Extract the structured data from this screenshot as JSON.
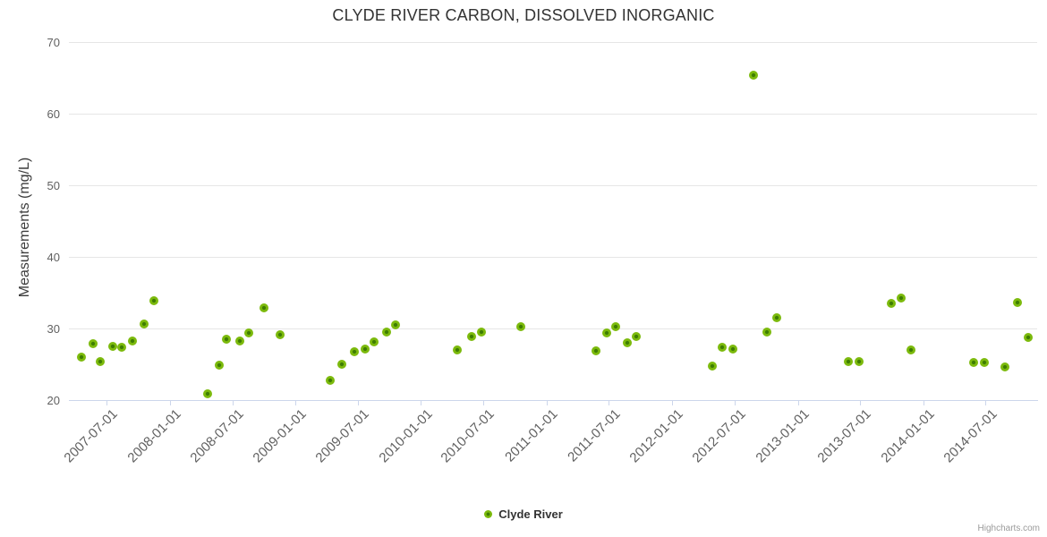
{
  "credits": "Highcharts.com",
  "colors": {
    "point_outer": "#7cba0d",
    "point_inner": "#3e7d02",
    "grid": "#e6e6e6",
    "axis": "#ccd6eb",
    "title_text": "#333333",
    "tick_text": "#606060",
    "credits_text": "#9a9a9a"
  },
  "chart_data": {
    "type": "scatter",
    "title": "CLYDE RIVER CARBON, DISSOLVED INORGANIC",
    "xlabel": "",
    "ylabel": "Measurements (mg/L)",
    "ylim": [
      20,
      70
    ],
    "yticks": [
      20,
      30,
      40,
      50,
      60,
      70
    ],
    "xticks": [
      "2007-07-01",
      "2008-01-01",
      "2008-07-01",
      "2009-01-01",
      "2009-07-01",
      "2010-01-01",
      "2010-07-01",
      "2011-01-01",
      "2011-07-01",
      "2012-01-01",
      "2012-07-01",
      "2013-01-01",
      "2013-07-01",
      "2014-01-01",
      "2014-07-01"
    ],
    "grid": "horizontal",
    "legend_position": "bottom-center",
    "series": [
      {
        "name": "Clyde River",
        "color": "#7cba0d",
        "points": [
          [
            "2007-04-20",
            26.1
          ],
          [
            "2007-05-24",
            28.0
          ],
          [
            "2007-06-14",
            25.4
          ],
          [
            "2007-07-19",
            27.6
          ],
          [
            "2007-08-15",
            27.4
          ],
          [
            "2007-09-15",
            28.3
          ],
          [
            "2007-10-18",
            30.7
          ],
          [
            "2007-11-15",
            34.0
          ],
          [
            "2008-04-20",
            20.9
          ],
          [
            "2008-05-24",
            25.0
          ],
          [
            "2008-06-15",
            28.6
          ],
          [
            "2008-07-22",
            28.3
          ],
          [
            "2008-08-18",
            29.5
          ],
          [
            "2008-10-01",
            32.9
          ],
          [
            "2008-11-18",
            29.2
          ],
          [
            "2009-04-13",
            22.8
          ],
          [
            "2009-05-16",
            25.1
          ],
          [
            "2009-06-22",
            26.8
          ],
          [
            "2009-07-22",
            27.2
          ],
          [
            "2009-08-18",
            28.2
          ],
          [
            "2009-09-24",
            29.6
          ],
          [
            "2009-10-19",
            30.6
          ],
          [
            "2010-04-16",
            27.1
          ],
          [
            "2010-05-27",
            29.0
          ],
          [
            "2010-06-25",
            29.6
          ],
          [
            "2010-10-19",
            30.3
          ],
          [
            "2011-05-24",
            27.0
          ],
          [
            "2011-06-24",
            29.5
          ],
          [
            "2011-07-22",
            30.3
          ],
          [
            "2011-08-25",
            28.1
          ],
          [
            "2011-09-19",
            29.0
          ],
          [
            "2012-04-27",
            24.8
          ],
          [
            "2012-05-27",
            27.4
          ],
          [
            "2012-06-25",
            27.2
          ],
          [
            "2012-08-24",
            65.4
          ],
          [
            "2012-10-03",
            29.6
          ],
          [
            "2012-11-01",
            31.6
          ],
          [
            "2013-05-28",
            25.5
          ],
          [
            "2013-06-27",
            25.5
          ],
          [
            "2013-10-01",
            33.6
          ],
          [
            "2013-10-28",
            34.3
          ],
          [
            "2013-11-27",
            27.1
          ],
          [
            "2014-05-28",
            25.3
          ],
          [
            "2014-06-27",
            25.3
          ],
          [
            "2014-08-27",
            24.7
          ],
          [
            "2014-10-03",
            33.7
          ],
          [
            "2014-11-01",
            28.8
          ]
        ]
      }
    ]
  }
}
